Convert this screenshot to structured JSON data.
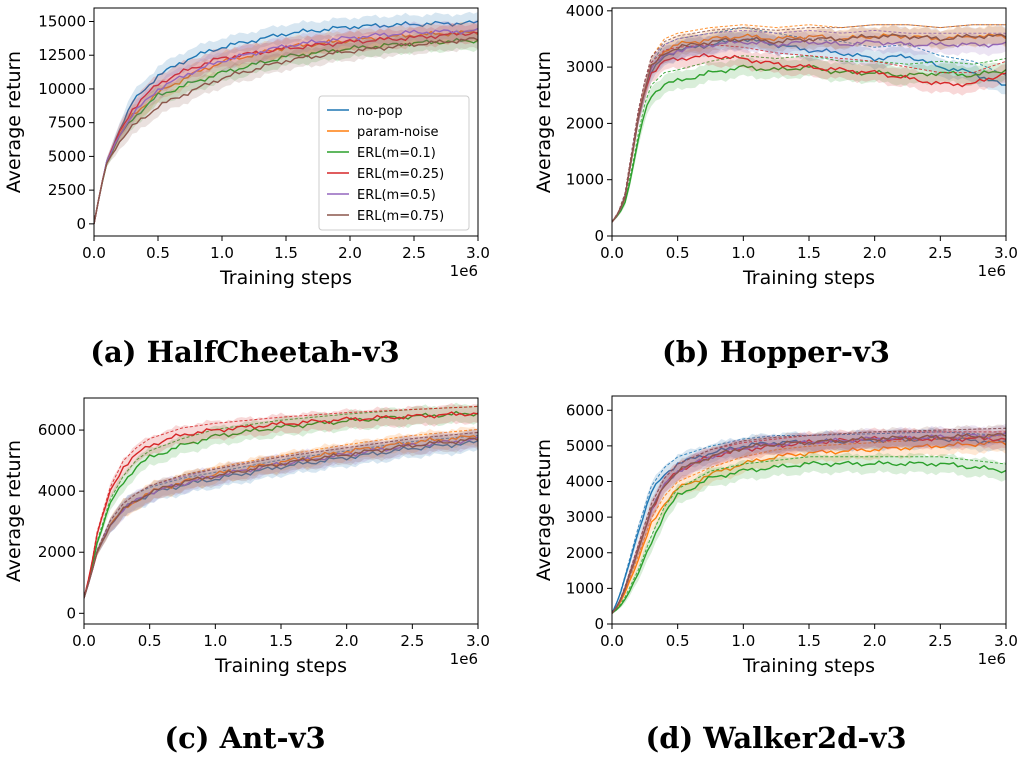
{
  "colors": {
    "no-pop": "#1f77b4",
    "param-noise": "#ff7f0e",
    "ERL(m=0.1)": "#2ca02c",
    "ERL(m=0.25)": "#d62728",
    "ERL(m=0.5)": "#9467bd",
    "ERL(m=0.75)": "#8c564b"
  },
  "legend": {
    "entries": [
      "no-pop",
      "param-noise",
      "ERL(m=0.1)",
      "ERL(m=0.25)",
      "ERL(m=0.5)",
      "ERL(m=0.75)"
    ]
  },
  "chart_data": [
    {
      "type": "line",
      "caption": "(a) HalfCheetah-v3",
      "xlabel": "Training steps",
      "ylabel": "Average return",
      "x_offset_label": "1e6",
      "xlim": [
        0,
        3.0
      ],
      "ylim": [
        -900,
        16000
      ],
      "xticks": [
        0.0,
        0.5,
        1.0,
        1.5,
        2.0,
        2.5,
        3.0
      ],
      "xtick_labels": [
        "0.0",
        "0.5",
        "1.0",
        "1.5",
        "2.0",
        "2.5",
        "3.0"
      ],
      "yticks": [
        0,
        2500,
        5000,
        7500,
        10000,
        12500,
        15000
      ],
      "ytick_labels": [
        "0",
        "2500",
        "5000",
        "7500",
        "10000",
        "12500",
        "15000"
      ],
      "legend": true,
      "legend_position": "center-right",
      "x": [
        0,
        0.05,
        0.1,
        0.2,
        0.3,
        0.5,
        0.75,
        1.0,
        1.5,
        2.0,
        2.5,
        3.0
      ],
      "series": [
        {
          "name": "no-pop",
          "values": [
            0,
            2500,
            4600,
            7000,
            9000,
            11000,
            12300,
            13100,
            14100,
            14600,
            14800,
            14900
          ]
        },
        {
          "name": "param-noise",
          "values": [
            0,
            2500,
            4600,
            6600,
            8000,
            9700,
            11000,
            12000,
            13100,
            13600,
            14000,
            14200
          ]
        },
        {
          "name": "ERL(m=0.1)",
          "values": [
            0,
            2500,
            4500,
            6500,
            7800,
            9500,
            10400,
            11200,
            12400,
            13000,
            13400,
            13600
          ]
        },
        {
          "name": "ERL(m=0.25)",
          "values": [
            0,
            2500,
            4600,
            6800,
            8500,
            10400,
            11500,
            12300,
            13000,
            13500,
            13800,
            14200
          ]
        },
        {
          "name": "ERL(m=0.5)",
          "values": [
            0,
            2500,
            4600,
            6600,
            8100,
            10000,
            11200,
            12100,
            13200,
            13800,
            14200,
            14300
          ]
        },
        {
          "name": "ERL(m=0.75)",
          "values": [
            0,
            2500,
            4500,
            6100,
            7200,
            8700,
            9800,
            10800,
            12100,
            12800,
            13300,
            13700
          ]
        }
      ]
    },
    {
      "type": "line",
      "caption": "(b) Hopper-v3",
      "xlabel": "Training steps",
      "ylabel": "Average return",
      "x_offset_label": "1e6",
      "xlim": [
        0,
        3.0
      ],
      "ylim": [
        0,
        4050
      ],
      "xticks": [
        0.0,
        0.5,
        1.0,
        1.5,
        2.0,
        2.5,
        3.0
      ],
      "xtick_labels": [
        "0.0",
        "0.5",
        "1.0",
        "1.5",
        "2.0",
        "2.5",
        "3.0"
      ],
      "yticks": [
        0,
        1000,
        2000,
        3000,
        4000
      ],
      "ytick_labels": [
        "0",
        "1000",
        "2000",
        "3000",
        "4000"
      ],
      "legend": false,
      "x": [
        0,
        0.05,
        0.1,
        0.15,
        0.2,
        0.25,
        0.3,
        0.4,
        0.5,
        0.75,
        1.0,
        1.25,
        1.5,
        1.75,
        2.0,
        2.25,
        2.5,
        2.75,
        3.0
      ],
      "series": [
        {
          "name": "no-pop",
          "values": [
            250,
            400,
            700,
            1400,
            2100,
            2600,
            2900,
            3200,
            3300,
            3400,
            3500,
            3400,
            3300,
            3250,
            3150,
            3200,
            3000,
            2900,
            2650
          ]
        },
        {
          "name": "param-noise",
          "values": [
            250,
            400,
            700,
            1400,
            2100,
            2600,
            3000,
            3300,
            3400,
            3500,
            3550,
            3500,
            3550,
            3500,
            3550,
            3550,
            3500,
            3550,
            3550
          ]
        },
        {
          "name": "ERL(m=0.1)",
          "values": [
            250,
            380,
            600,
            1100,
            1700,
            2200,
            2500,
            2700,
            2750,
            2900,
            3000,
            2950,
            3000,
            2900,
            2900,
            2850,
            2900,
            2850,
            2950
          ]
        },
        {
          "name": "ERL(m=0.25)",
          "values": [
            250,
            400,
            700,
            1400,
            2100,
            2600,
            2900,
            3100,
            3150,
            3200,
            3150,
            3050,
            3000,
            2950,
            2900,
            2800,
            2700,
            2700,
            2900
          ]
        },
        {
          "name": "ERL(m=0.5)",
          "values": [
            250,
            400,
            700,
            1400,
            2100,
            2600,
            3000,
            3200,
            3300,
            3400,
            3450,
            3400,
            3450,
            3400,
            3450,
            3400,
            3400,
            3400,
            3400
          ]
        },
        {
          "name": "ERL(m=0.75)",
          "values": [
            250,
            400,
            700,
            1400,
            2100,
            2600,
            3000,
            3250,
            3350,
            3450,
            3500,
            3450,
            3500,
            3500,
            3550,
            3550,
            3500,
            3550,
            3550
          ]
        }
      ]
    },
    {
      "type": "line",
      "caption": "(c) Ant-v3",
      "xlabel": "Training steps",
      "ylabel": "Average return",
      "x_offset_label": "1e6",
      "xlim": [
        0,
        3.0
      ],
      "ylim": [
        -350,
        7050
      ],
      "xticks": [
        0.0,
        0.5,
        1.0,
        1.5,
        2.0,
        2.5,
        3.0
      ],
      "xtick_labels": [
        "0.0",
        "0.5",
        "1.0",
        "1.5",
        "2.0",
        "2.5",
        "3.0"
      ],
      "yticks": [
        0,
        2000,
        4000,
        6000
      ],
      "ytick_labels": [
        "0",
        "2000",
        "4000",
        "6000"
      ],
      "legend": false,
      "x": [
        0,
        0.05,
        0.1,
        0.2,
        0.3,
        0.4,
        0.5,
        0.75,
        1.0,
        1.5,
        2.0,
        2.5,
        3.0
      ],
      "series": [
        {
          "name": "no-pop",
          "values": [
            500,
            1200,
            2000,
            2900,
            3400,
            3700,
            3900,
            4200,
            4400,
            4800,
            5100,
            5400,
            5600
          ]
        },
        {
          "name": "param-noise",
          "values": [
            500,
            1200,
            2000,
            2900,
            3400,
            3700,
            3950,
            4300,
            4550,
            4950,
            5300,
            5600,
            5800
          ]
        },
        {
          "name": "ERL(m=0.1)",
          "values": [
            500,
            1300,
            2300,
            3600,
            4300,
            4800,
            5100,
            5500,
            5800,
            6100,
            6300,
            6450,
            6550
          ]
        },
        {
          "name": "ERL(m=0.25)",
          "values": [
            500,
            1400,
            2600,
            4000,
            4800,
            5200,
            5500,
            5850,
            6000,
            6200,
            6350,
            6450,
            6550
          ]
        },
        {
          "name": "ERL(m=0.5)",
          "values": [
            500,
            1200,
            2000,
            2900,
            3400,
            3700,
            3950,
            4250,
            4500,
            4900,
            5200,
            5500,
            5700
          ]
        },
        {
          "name": "ERL(m=0.75)",
          "values": [
            500,
            1200,
            2000,
            2900,
            3400,
            3700,
            3950,
            4300,
            4500,
            4900,
            5200,
            5500,
            5700
          ]
        }
      ]
    },
    {
      "type": "line",
      "caption": "(d) Walker2d-v3",
      "xlabel": "Training steps",
      "ylabel": "Average return",
      "x_offset_label": "1e6",
      "xlim": [
        0,
        3.0
      ],
      "ylim": [
        0,
        6400
      ],
      "xticks": [
        0.0,
        0.5,
        1.0,
        1.5,
        2.0,
        2.5,
        3.0
      ],
      "xtick_labels": [
        "0.0",
        "0.5",
        "1.0",
        "1.5",
        "2.0",
        "2.5",
        "3.0"
      ],
      "yticks": [
        0,
        1000,
        2000,
        3000,
        4000,
        5000,
        6000
      ],
      "ytick_labels": [
        "0",
        "1000",
        "2000",
        "3000",
        "4000",
        "5000",
        "6000"
      ],
      "legend": false,
      "x": [
        0,
        0.05,
        0.1,
        0.2,
        0.3,
        0.4,
        0.5,
        0.75,
        1.0,
        1.25,
        1.5,
        2.0,
        2.5,
        3.0
      ],
      "series": [
        {
          "name": "no-pop",
          "values": [
            300,
            700,
            1300,
            2600,
            3700,
            4200,
            4500,
            4800,
            5000,
            5100,
            5100,
            5150,
            5200,
            5100
          ]
        },
        {
          "name": "param-noise",
          "values": [
            300,
            500,
            900,
            1800,
            2800,
            3400,
            3800,
            4200,
            4500,
            4700,
            4800,
            4900,
            5000,
            5100
          ]
        },
        {
          "name": "ERL(m=0.1)",
          "values": [
            300,
            450,
            700,
            1400,
            2300,
            3100,
            3600,
            4100,
            4300,
            4400,
            4500,
            4500,
            4500,
            4300
          ]
        },
        {
          "name": "ERL(m=0.25)",
          "values": [
            300,
            550,
            1000,
            2100,
            3200,
            3900,
            4300,
            4700,
            4900,
            5000,
            5100,
            5200,
            5200,
            5200
          ]
        },
        {
          "name": "ERL(m=0.5)",
          "values": [
            300,
            550,
            1000,
            2100,
            3200,
            3900,
            4300,
            4700,
            4950,
            5050,
            5100,
            5200,
            5250,
            5300
          ]
        },
        {
          "name": "ERL(m=0.75)",
          "values": [
            300,
            550,
            1000,
            2100,
            3200,
            3900,
            4300,
            4700,
            4950,
            5050,
            5100,
            5200,
            5250,
            5300
          ]
        }
      ]
    }
  ]
}
